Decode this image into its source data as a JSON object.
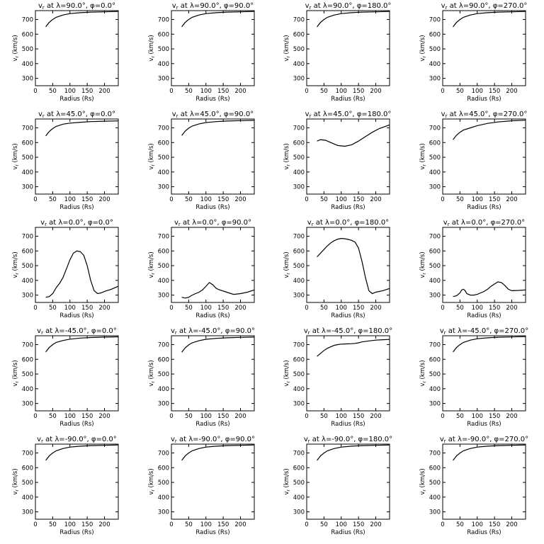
{
  "chart_data": {
    "type": "line",
    "layout": "grid of 5 rows x 4 columns",
    "xlabel": "Radius (Rs)",
    "ylabel": "v_r (km/s)",
    "xlim": [
      0,
      240
    ],
    "ylim": [
      250,
      760
    ],
    "xticks": [
      0,
      50,
      100,
      150,
      200
    ],
    "yticks": [
      300,
      400,
      500,
      600,
      700
    ],
    "grid": false,
    "panels": [
      {
        "lat": "90.0",
        "phi": "0.0",
        "x": [
          30,
          40,
          50,
          60,
          80,
          100,
          130,
          160,
          200,
          240
        ],
        "y": [
          650,
          680,
          700,
          715,
          730,
          740,
          746,
          750,
          752,
          754
        ]
      },
      {
        "lat": "90.0",
        "phi": "90.0",
        "x": [
          30,
          40,
          50,
          60,
          80,
          100,
          130,
          160,
          200,
          240
        ],
        "y": [
          650,
          680,
          700,
          715,
          730,
          740,
          746,
          750,
          752,
          754
        ]
      },
      {
        "lat": "90.0",
        "phi": "180.0",
        "x": [
          30,
          40,
          50,
          60,
          80,
          100,
          130,
          160,
          200,
          240
        ],
        "y": [
          650,
          680,
          700,
          715,
          730,
          740,
          746,
          750,
          752,
          754
        ]
      },
      {
        "lat": "90.0",
        "phi": "270.0",
        "x": [
          30,
          40,
          50,
          60,
          80,
          100,
          130,
          160,
          200,
          240
        ],
        "y": [
          650,
          680,
          700,
          715,
          730,
          740,
          746,
          750,
          752,
          754
        ]
      },
      {
        "lat": "45.0",
        "phi": "0.0",
        "x": [
          30,
          40,
          50,
          60,
          80,
          100,
          130,
          160,
          200,
          240
        ],
        "y": [
          645,
          675,
          695,
          710,
          725,
          732,
          738,
          742,
          745,
          747
        ]
      },
      {
        "lat": "45.0",
        "phi": "90.0",
        "x": [
          30,
          40,
          50,
          60,
          80,
          100,
          130,
          160,
          200,
          240
        ],
        "y": [
          648,
          678,
          698,
          712,
          727,
          736,
          742,
          746,
          749,
          751
        ]
      },
      {
        "lat": "45.0",
        "phi": "180.0",
        "x": [
          30,
          40,
          55,
          70,
          90,
          110,
          130,
          150,
          170,
          190,
          210,
          240
        ],
        "y": [
          610,
          620,
          615,
          600,
          580,
          575,
          585,
          610,
          640,
          670,
          695,
          720
        ]
      },
      {
        "lat": "45.0",
        "phi": "270.0",
        "x": [
          30,
          40,
          50,
          60,
          80,
          100,
          130,
          160,
          200,
          240
        ],
        "y": [
          620,
          650,
          670,
          685,
          700,
          715,
          730,
          740,
          748,
          752
        ]
      },
      {
        "lat": "0.0",
        "phi": "0.0",
        "x": [
          30,
          40,
          50,
          60,
          70,
          80,
          90,
          100,
          110,
          120,
          130,
          140,
          150,
          160,
          170,
          180,
          190,
          200,
          220,
          240
        ],
        "y": [
          285,
          290,
          310,
          350,
          380,
          420,
          480,
          540,
          585,
          600,
          595,
          570,
          500,
          400,
          330,
          310,
          315,
          325,
          340,
          360
        ]
      },
      {
        "lat": "0.0",
        "phi": "90.0",
        "x": [
          30,
          40,
          50,
          60,
          70,
          80,
          90,
          100,
          110,
          120,
          130,
          140,
          160,
          180,
          200,
          220,
          240
        ],
        "y": [
          285,
          280,
          285,
          300,
          310,
          320,
          335,
          360,
          385,
          370,
          345,
          335,
          320,
          305,
          310,
          320,
          335
        ]
      },
      {
        "lat": "0.0",
        "phi": "180.0",
        "x": [
          30,
          40,
          50,
          60,
          70,
          80,
          90,
          100,
          110,
          120,
          130,
          140,
          150,
          160,
          170,
          180,
          190,
          200,
          220,
          240
        ],
        "y": [
          560,
          585,
          610,
          635,
          655,
          670,
          680,
          685,
          683,
          678,
          672,
          660,
          620,
          530,
          420,
          330,
          310,
          320,
          330,
          345
        ]
      },
      {
        "lat": "0.0",
        "phi": "270.0",
        "x": [
          30,
          40,
          50,
          55,
          60,
          65,
          70,
          80,
          90,
          100,
          110,
          120,
          130,
          140,
          150,
          160,
          170,
          180,
          190,
          200,
          220,
          240
        ],
        "y": [
          290,
          295,
          315,
          335,
          340,
          330,
          310,
          300,
          300,
          305,
          315,
          325,
          340,
          360,
          375,
          390,
          385,
          365,
          340,
          330,
          332,
          335
        ]
      },
      {
        "lat": "-45.0",
        "phi": "0.0",
        "x": [
          30,
          40,
          50,
          60,
          80,
          100,
          130,
          160,
          200,
          240
        ],
        "y": [
          650,
          680,
          700,
          715,
          728,
          737,
          744,
          748,
          751,
          753
        ]
      },
      {
        "lat": "-45.0",
        "phi": "90.0",
        "x": [
          30,
          40,
          50,
          60,
          80,
          100,
          130,
          160,
          200,
          240
        ],
        "y": [
          648,
          678,
          698,
          712,
          727,
          736,
          742,
          746,
          749,
          751
        ]
      },
      {
        "lat": "-45.0",
        "phi": "180.0",
        "x": [
          30,
          40,
          50,
          60,
          70,
          80,
          90,
          100,
          110,
          120,
          130,
          140,
          150,
          160,
          180,
          200,
          220,
          240
        ],
        "y": [
          620,
          640,
          660,
          675,
          685,
          695,
          700,
          703,
          704,
          705,
          706,
          708,
          712,
          718,
          725,
          730,
          733,
          735
        ]
      },
      {
        "lat": "-45.0",
        "phi": "270.0",
        "x": [
          30,
          40,
          50,
          60,
          80,
          100,
          130,
          160,
          200,
          240
        ],
        "y": [
          650,
          680,
          700,
          715,
          730,
          740,
          746,
          750,
          752,
          754
        ]
      },
      {
        "lat": "-90.0",
        "phi": "0.0",
        "x": [
          30,
          40,
          50,
          60,
          80,
          100,
          130,
          160,
          200,
          240
        ],
        "y": [
          650,
          680,
          700,
          715,
          730,
          740,
          746,
          750,
          752,
          754
        ]
      },
      {
        "lat": "-90.0",
        "phi": "90.0",
        "x": [
          30,
          40,
          50,
          60,
          80,
          100,
          130,
          160,
          200,
          240
        ],
        "y": [
          650,
          680,
          700,
          715,
          730,
          740,
          746,
          750,
          752,
          754
        ]
      },
      {
        "lat": "-90.0",
        "phi": "180.0",
        "x": [
          30,
          40,
          50,
          60,
          80,
          100,
          130,
          160,
          200,
          240
        ],
        "y": [
          650,
          680,
          700,
          715,
          730,
          740,
          746,
          750,
          752,
          754
        ]
      },
      {
        "lat": "-90.0",
        "phi": "270.0",
        "x": [
          30,
          40,
          50,
          60,
          80,
          100,
          130,
          160,
          200,
          240
        ],
        "y": [
          650,
          680,
          700,
          715,
          730,
          740,
          746,
          750,
          752,
          754
        ]
      }
    ]
  }
}
